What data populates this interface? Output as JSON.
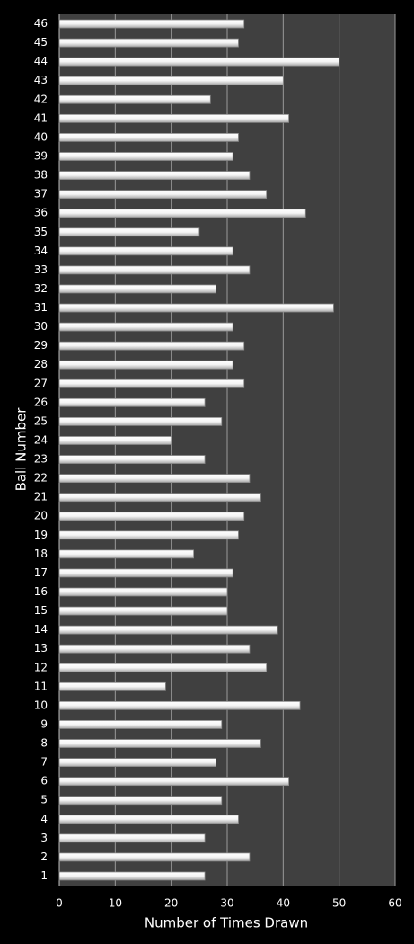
{
  "chart_data": {
    "type": "barh",
    "y_label": "Ball Number",
    "x_label": "Number of Times Drawn",
    "categories": [
      "1",
      "2",
      "3",
      "4",
      "5",
      "6",
      "7",
      "8",
      "9",
      "10",
      "11",
      "12",
      "13",
      "14",
      "15",
      "16",
      "17",
      "18",
      "19",
      "20",
      "21",
      "22",
      "23",
      "24",
      "25",
      "26",
      "27",
      "28",
      "29",
      "30",
      "31",
      "32",
      "33",
      "34",
      "35",
      "36",
      "37",
      "38",
      "39",
      "40",
      "41",
      "42",
      "43",
      "44",
      "45",
      "46"
    ],
    "values": [
      26,
      34,
      26,
      32,
      29,
      41,
      28,
      36,
      29,
      43,
      19,
      37,
      34,
      39,
      30,
      30,
      31,
      24,
      32,
      33,
      36,
      34,
      26,
      20,
      29,
      26,
      33,
      31,
      33,
      31,
      49,
      28,
      34,
      31,
      25,
      44,
      37,
      34,
      31,
      32,
      41,
      27,
      40,
      50,
      32,
      33
    ],
    "color": "#ffffff",
    "xlim": [
      0,
      60
    ],
    "xticks": [
      0,
      10,
      20,
      30,
      40,
      50,
      60
    ],
    "grid": true
  }
}
